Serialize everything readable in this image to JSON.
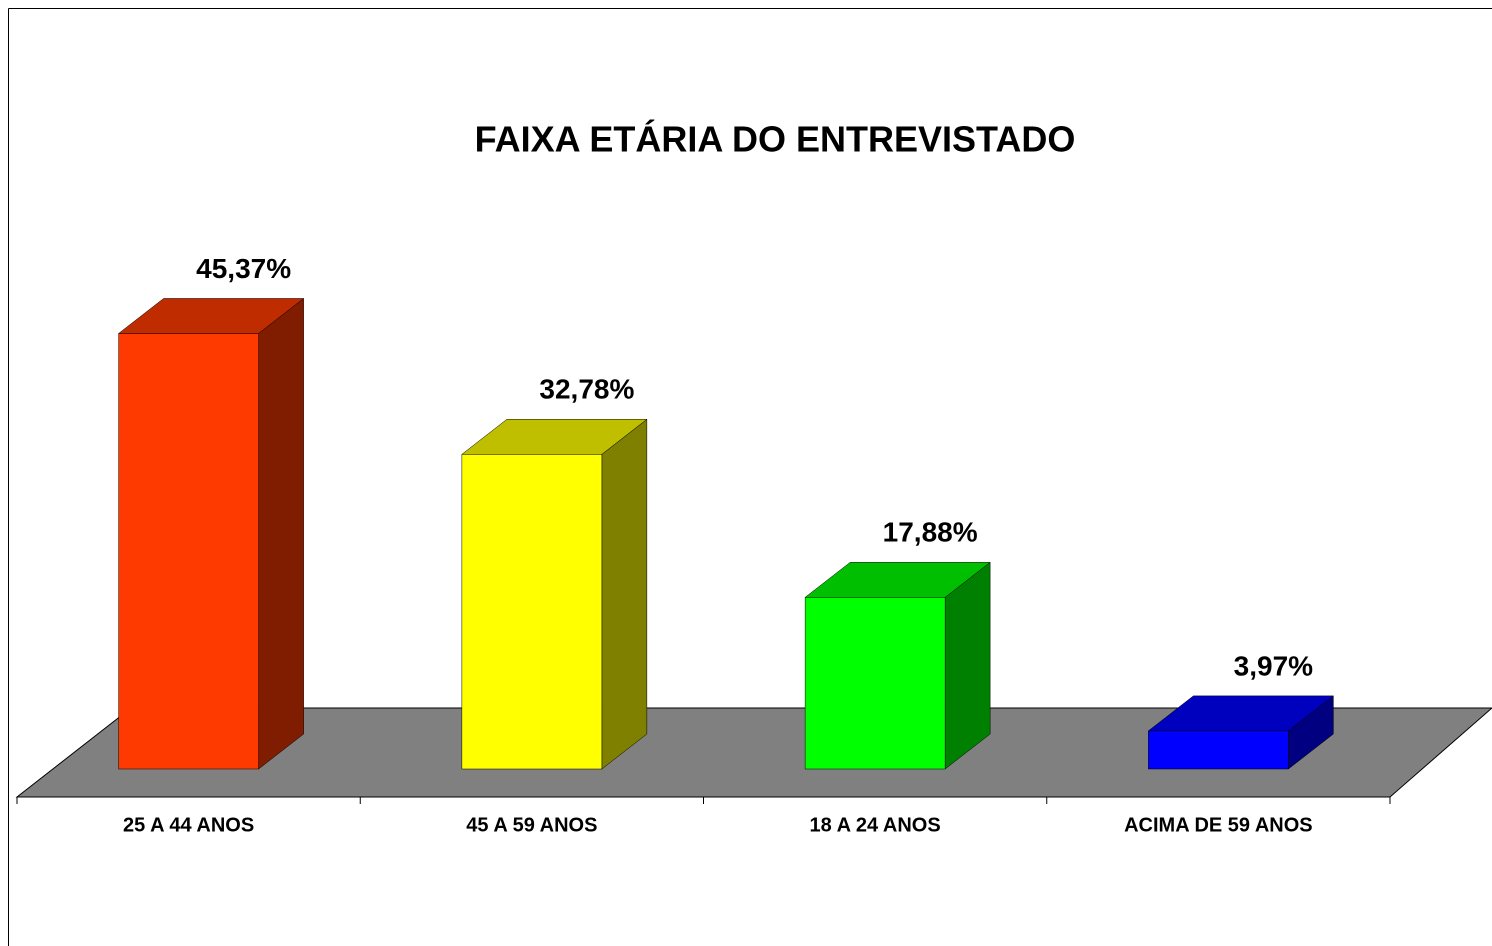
{
  "chart_data": {
    "type": "bar3d",
    "title": "FAIXA ETÁRIA DO ENTREVISTADO",
    "categories": [
      "25 A 44 ANOS",
      "45 A 59 ANOS",
      "18 A 24 ANOS",
      "ACIMA DE 59 ANOS"
    ],
    "values": [
      45.37,
      32.78,
      17.88,
      3.97
    ],
    "value_labels": [
      "45,37%",
      "32,78%",
      "17,88%",
      "3,97%"
    ],
    "colors": [
      "#ff3a00",
      "#ffff00",
      "#00ff00",
      "#0000ff"
    ],
    "ylim": [
      0,
      50
    ]
  }
}
